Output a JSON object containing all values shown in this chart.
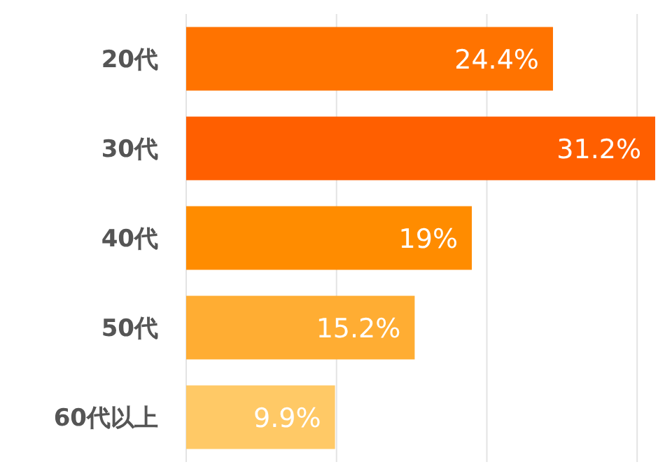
{
  "chart_data": {
    "type": "bar",
    "orientation": "horizontal",
    "categories": [
      "20代",
      "30代",
      "40代",
      "50代",
      "60代以上"
    ],
    "values": [
      24.4,
      31.2,
      19,
      15.2,
      9.9
    ],
    "colors": [
      "#ff7300",
      "#ff5f00",
      "#ff8c00",
      "#ffad33",
      "#ffc966"
    ],
    "value_labels": [
      "24.4%",
      "31.2%",
      "19%",
      "15.2%",
      "9.9%"
    ],
    "xticks": [
      {
        "value": 0,
        "label": null
      },
      {
        "value": 10,
        "label": null
      },
      {
        "value": 20,
        "label": null
      },
      {
        "value": 30,
        "label": null
      }
    ],
    "grid": "x"
  }
}
